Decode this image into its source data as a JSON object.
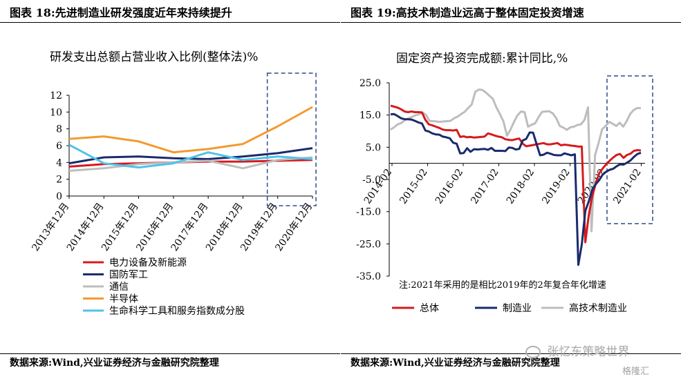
{
  "left": {
    "title": "图表 18:先进制造业研发强度近年来持续提升",
    "source": "数据来源:Wind,兴业证券经济与金融研究院整理"
  },
  "right": {
    "title": "图表 19:高技术制造业远高于整体固定投资增速",
    "source": "数据来源:Wind,兴业证券经济与金融研究院整理"
  },
  "watermark": {
    "text": "张忆东策略世界",
    "logo": "格隆汇"
  },
  "chart_data": [
    {
      "type": "line",
      "title": "研发支出总额占营业收入比例(整体法)%",
      "categories": [
        "2013年12月",
        "2014年12月",
        "2015年12月",
        "2016年12月",
        "2017年12月",
        "2018年12月",
        "2019年12月",
        "2020年12月"
      ],
      "ylim": [
        0,
        12
      ],
      "yticks": [
        "0",
        "2",
        "4",
        "6",
        "8",
        "10",
        "12"
      ],
      "grid": false,
      "legend_position": "bottom-left",
      "series": [
        {
          "name": "电力设备及新能源",
          "color": "#d7191c",
          "values": [
            3.5,
            3.8,
            3.9,
            4.0,
            4.1,
            4.1,
            4.2,
            4.3
          ]
        },
        {
          "name": "国防军工",
          "color": "#1a2a6c",
          "values": [
            3.9,
            4.6,
            4.7,
            4.5,
            4.4,
            4.7,
            5.1,
            5.7
          ]
        },
        {
          "name": "通信",
          "color": "#bdbdbd",
          "values": [
            3.0,
            3.3,
            3.8,
            4.0,
            4.2,
            3.3,
            4.3,
            4.6
          ]
        },
        {
          "name": "半导体",
          "color": "#f39a2f",
          "values": [
            6.8,
            7.1,
            6.5,
            5.2,
            5.6,
            6.2,
            8.3,
            10.6
          ]
        },
        {
          "name": "生命科学工具和服务指数成分股",
          "color": "#4fc3e8",
          "values": [
            6.1,
            3.9,
            3.4,
            3.9,
            5.2,
            4.3,
            4.7,
            4.4
          ]
        }
      ]
    },
    {
      "type": "line",
      "title": "固定资产投资完成额:累计同比,%",
      "x_labels": [
        "2014-02",
        "2015-02",
        "2016-02",
        "2017-02",
        "2018-02",
        "2019-02",
        "2020-02",
        "2021-02"
      ],
      "ylim": [
        -35,
        25
      ],
      "yticks": [
        "25.0",
        "15.0",
        "5.0",
        "-5.0",
        "-15.0",
        "-25.0",
        "-35.0"
      ],
      "grid": false,
      "legend_position": "bottom",
      "note": "注:2021年采用的是相比2019年的2年复合年化增速",
      "series": [
        {
          "name": "总体",
          "color": "#d7191c",
          "values": [
            17.9,
            17.6,
            17.3,
            16.8,
            16.1,
            15.9,
            16.1,
            15.9,
            15.9,
            15.8,
            13.5,
            12.1,
            11.8,
            11.4,
            11.0,
            10.5,
            10.3,
            10.3,
            10.2,
            10.4,
            8.2,
            8.4,
            8.1,
            8.2,
            8.0,
            8.1,
            8.2,
            8.3,
            9.3,
            9.0,
            8.6,
            8.3,
            8.1,
            7.5,
            7.3,
            7.2,
            7.5,
            7.7,
            6.1,
            5.3,
            5.5,
            5.7,
            5.9,
            6.1,
            6.3,
            5.9,
            5.9,
            6.1,
            6.3,
            5.6,
            5.8,
            5.7,
            5.5,
            5.4,
            5.2,
            5.2,
            -24.5,
            -16.1,
            -10.3,
            -6.3,
            -3.1,
            -1.6,
            -0.3,
            0.8,
            1.8,
            2.6,
            2.9,
            1.7,
            2.6,
            3.0,
            3.9,
            4.1,
            4.0
          ]
        },
        {
          "name": "制造业",
          "color": "#1a2a6c",
          "values": [
            15.2,
            15.3,
            14.7,
            14.0,
            13.7,
            13.7,
            13.6,
            13.2,
            12.7,
            12.4,
            10.2,
            9.9,
            9.3,
            9.0,
            8.9,
            8.3,
            8.1,
            7.8,
            6.4,
            6.1,
            3.1,
            3.2,
            4.7,
            3.6,
            4.4,
            4.3,
            4.4,
            4.5,
            4.2,
            4.8,
            3.9,
            3.9,
            3.9,
            3.8,
            4.9,
            4.8,
            4.3,
            4.5,
            7.1,
            7.6,
            9.6,
            9.5,
            5.9,
            2.5,
            2.7,
            3.3,
            3.0,
            2.6,
            2.5,
            2.5,
            3.1,
            2.8,
            2.5,
            2.8,
            -31.5,
            -25.2,
            -14.8,
            -11.8,
            -8.2,
            -6.5,
            -5.2,
            -3.5,
            -2.6,
            -2.0,
            -1.7,
            -0.9,
            -0.3,
            -0.4,
            0.2,
            0.9,
            2.0,
            2.9,
            3.3
          ]
        },
        {
          "name": "高技术制造业",
          "color": "#bdbdbd",
          "values": [
            10.5,
            11.2,
            12.1,
            12.5,
            13.4,
            13.9,
            14.4,
            14.9,
            15.2,
            15.8,
            15.1,
            13.2,
            13.1,
            13.0,
            12.9,
            13.0,
            13.1,
            13.2,
            14.0,
            14.5,
            15.3,
            16.0,
            17.2,
            18.3,
            22.2,
            22.9,
            22.8,
            22.0,
            21.0,
            20.0,
            17.4,
            15.3,
            13.0,
            8.6,
            10.5,
            12.9,
            14.9,
            16.1,
            15.9,
            11.4,
            12.0,
            12.4,
            14.4,
            16.0,
            16.1,
            16.2,
            15.5,
            14.0,
            11.6,
            11.1,
            10.4,
            11.2,
            11.4,
            11.9,
            12.1,
            13.5,
            17.4,
            -21.1,
            2.6,
            6.3,
            10.6,
            11.6,
            12.9,
            12.3,
            11.6,
            12.6,
            11.4,
            13.2,
            15.4,
            16.6,
            17.2,
            17.1
          ]
        }
      ]
    }
  ]
}
